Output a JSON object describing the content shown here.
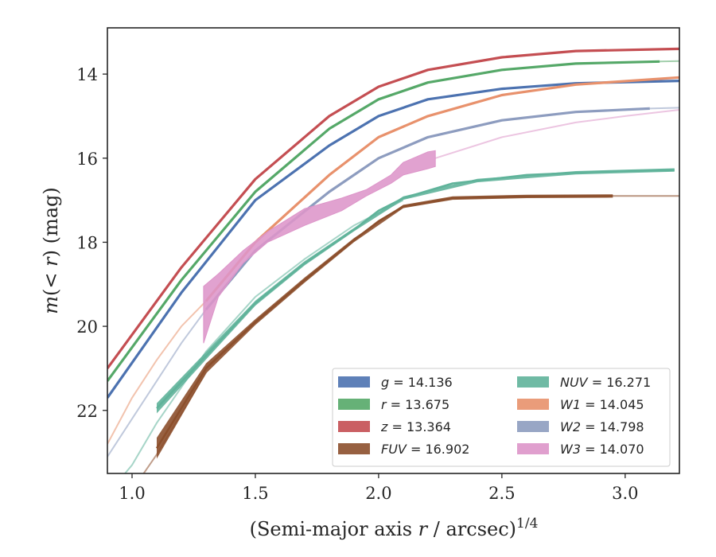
{
  "chart_data": {
    "type": "area",
    "xlabel": "(Semi-major axis r / arcsec)",
    "xlabel_parts": {
      "prefix": "(Semi-major axis ",
      "var": "r",
      "suffix": " / arcsec)",
      "sup": "1/4"
    },
    "ylabel_parts": {
      "m": "m",
      "open": "(",
      "lt": "< ",
      "r": "r",
      "close": ") (mag)"
    },
    "xlim": [
      0.9,
      3.22
    ],
    "ylim": [
      23.5,
      12.9
    ],
    "y_inverted": true,
    "xticks": [
      1.0,
      1.5,
      2.0,
      2.5,
      3.0
    ],
    "xtick_labels": [
      "1.0",
      "1.5",
      "2.0",
      "2.5",
      "3.0"
    ],
    "yticks": [
      14,
      16,
      18,
      20,
      22
    ],
    "ytick_labels": [
      "14",
      "16",
      "18",
      "20",
      "22"
    ],
    "legend_position": "lower-right",
    "series": [
      {
        "name": "g",
        "label_value": "= 14.136",
        "color": "#4c72b0",
        "total": 14.136,
        "band": 0.06,
        "solid_x": [
          0.9,
          1.2,
          1.5,
          1.8,
          2.0,
          2.2,
          2.5,
          2.8,
          3.22
        ],
        "solid_y": [
          21.7,
          19.2,
          17.0,
          15.7,
          15.0,
          14.6,
          14.35,
          14.22,
          14.16
        ],
        "faint_x": [],
        "faint_y": []
      },
      {
        "name": "r",
        "label_value": "= 13.675",
        "color": "#55a868",
        "total": 13.675,
        "band": 0.06,
        "solid_x": [
          0.9,
          1.2,
          1.5,
          1.8,
          2.0,
          2.2,
          2.5,
          2.8,
          3.14
        ],
        "solid_y": [
          21.3,
          18.9,
          16.8,
          15.3,
          14.6,
          14.2,
          13.9,
          13.75,
          13.7
        ],
        "faint_x": [
          3.14,
          3.22
        ],
        "faint_y": [
          13.7,
          13.69
        ]
      },
      {
        "name": "z",
        "label_value": "= 13.364",
        "color": "#c44e52",
        "total": 13.364,
        "band": 0.06,
        "solid_x": [
          0.9,
          1.2,
          1.5,
          1.8,
          2.0,
          2.2,
          2.5,
          2.8,
          3.22
        ],
        "solid_y": [
          21.0,
          18.6,
          16.5,
          15.0,
          14.3,
          13.9,
          13.6,
          13.45,
          13.4
        ],
        "faint_x": [],
        "faint_y": []
      },
      {
        "name": "FUV",
        "label_value": "= 16.902",
        "color": "#8c4f2c",
        "total": 16.902,
        "band_x": [
          1.1,
          1.3,
          1.5,
          1.7,
          1.9,
          2.1,
          2.3,
          2.6,
          2.95
        ],
        "band_w": [
          0.25,
          0.12,
          0.07,
          0.06,
          0.05,
          0.04,
          0.04,
          0.04,
          0.04
        ],
        "solid_x": [
          1.1,
          1.3,
          1.5,
          1.7,
          1.9,
          2.0,
          2.1,
          2.3,
          2.6,
          2.95
        ],
        "solid_y": [
          22.9,
          21.0,
          19.9,
          18.9,
          17.95,
          17.5,
          17.15,
          16.95,
          16.91,
          16.9
        ],
        "faint_x": [
          0.9,
          1.0,
          1.1,
          1.3
        ],
        "faint_y": [
          24.6,
          23.9,
          23.05,
          21.1
        ],
        "faint2_x": [
          2.95,
          3.22
        ],
        "faint2_y": [
          16.9,
          16.9
        ]
      },
      {
        "name": "NUV",
        "label_value": "= 16.271",
        "color": "#5fb39a",
        "total": 16.271,
        "band_x": [
          1.1,
          1.3,
          1.5,
          1.7,
          1.9,
          2.1,
          2.4,
          2.8,
          3.2
        ],
        "band_w": [
          0.12,
          0.09,
          0.06,
          0.05,
          0.04,
          0.04,
          0.04,
          0.04,
          0.04
        ],
        "solid_x": [
          1.1,
          1.3,
          1.5,
          1.7,
          1.9,
          2.0,
          2.1,
          2.3,
          2.6,
          2.9,
          3.2
        ],
        "solid_y": [
          21.95,
          20.7,
          19.45,
          18.5,
          17.7,
          17.25,
          16.95,
          16.6,
          16.4,
          16.32,
          16.28
        ],
        "faint_x": [
          0.9,
          1.0,
          1.1,
          1.3,
          1.5,
          1.7,
          1.9,
          2.1
        ],
        "faint_y": [
          24.0,
          23.3,
          22.3,
          20.6,
          19.3,
          18.4,
          17.6,
          17.0
        ]
      },
      {
        "name": "W1",
        "label_value": "= 14.045",
        "color": "#e8916c",
        "total": 14.045,
        "band": 0.05,
        "solid_x": [
          1.3,
          1.5,
          1.8,
          2.0,
          2.2,
          2.5,
          2.8,
          3.22
        ],
        "solid_y": [
          19.4,
          18.0,
          16.4,
          15.5,
          15.0,
          14.5,
          14.25,
          14.08
        ],
        "faint_x": [
          0.9,
          1.0,
          1.1,
          1.2,
          1.3
        ],
        "faint_y": [
          22.8,
          21.7,
          20.8,
          20.0,
          19.4
        ]
      },
      {
        "name": "W2",
        "label_value": "= 14.798",
        "color": "#8d9cbf",
        "total": 14.798,
        "band": 0.06,
        "solid_x": [
          1.3,
          1.5,
          1.8,
          2.0,
          2.2,
          2.5,
          2.8,
          3.1
        ],
        "solid_y": [
          19.6,
          18.2,
          16.8,
          16.0,
          15.5,
          15.1,
          14.9,
          14.82
        ],
        "faint_x": [
          0.9,
          1.0,
          1.1,
          1.2,
          1.3,
          3.1,
          3.22
        ],
        "faint_y": [
          23.1,
          22.2,
          21.3,
          20.4,
          19.6,
          14.82,
          14.8
        ],
        "break_after": 4
      },
      {
        "name": "W3",
        "label_value": "= 14.070",
        "color": "#dd95c9",
        "total": 14.07,
        "band_x": [
          1.29,
          1.35,
          1.45,
          1.55,
          1.7,
          1.85,
          1.95,
          2.05,
          2.1,
          2.2,
          2.23
        ],
        "band_lo": [
          20.4,
          19.3,
          18.5,
          18.0,
          17.6,
          17.25,
          16.9,
          16.6,
          16.4,
          16.25,
          16.2
        ],
        "band_hi": [
          19.05,
          18.75,
          18.2,
          17.75,
          17.2,
          16.95,
          16.75,
          16.4,
          16.1,
          15.85,
          15.82
        ],
        "faint_x": [
          2.23,
          2.5,
          2.8,
          3.0,
          3.22
        ],
        "faint_y": [
          16.0,
          15.5,
          15.15,
          15.0,
          14.85
        ]
      }
    ]
  }
}
